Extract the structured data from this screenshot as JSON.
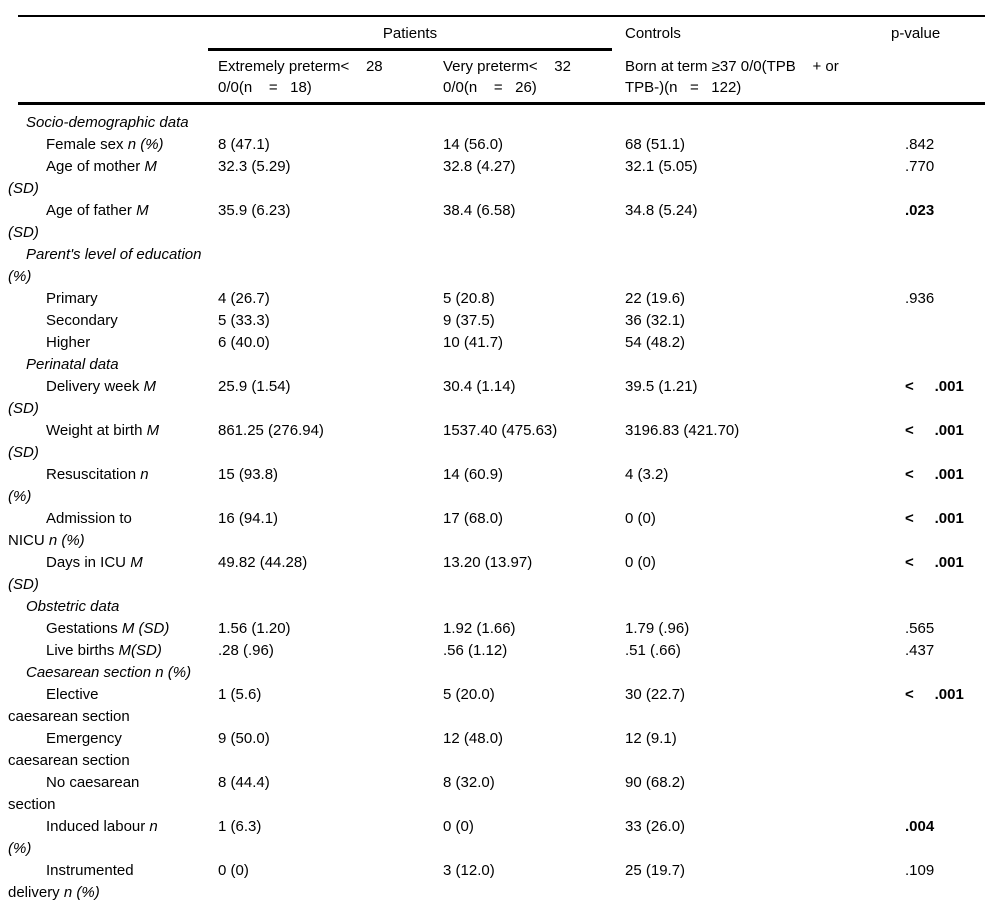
{
  "table": {
    "header": {
      "patients": "Patients",
      "controls": "Controls",
      "pvalue": "p-value",
      "col1": "Extremely preterm<    28\n0/0(n    =   18)",
      "col2": "Very preterm<    32\n0/0(n    =   26)",
      "col3": "Born at term ≥37 0/0(TPB    + or\nTPB-)(n   =   122)"
    },
    "rows": [
      {
        "type": "section",
        "label": [
          {
            "t": "Socio-demographic data",
            "i": true
          }
        ]
      },
      {
        "type": "item",
        "label": [
          {
            "t": "Female sex ",
            "i": false
          },
          {
            "t": "n (%)",
            "i": true
          }
        ],
        "c1": "8 (47.1)",
        "c2": "14 (56.0)",
        "c3": "68 (51.1)",
        "p": ".842",
        "p_bold": false
      },
      {
        "type": "item",
        "label": [
          {
            "t": "Age of mother ",
            "i": false
          },
          {
            "t": "M",
            "i": true
          },
          {
            "t": "\n",
            "i": false
          },
          {
            "t": "(SD)",
            "i": true
          }
        ],
        "c1": "32.3 (5.29)",
        "c2": "32.8 (4.27)",
        "c3": "32.1 (5.05)",
        "p": ".770",
        "p_bold": false
      },
      {
        "type": "item",
        "label": [
          {
            "t": "Age of father ",
            "i": false
          },
          {
            "t": "M",
            "i": true
          },
          {
            "t": "\n",
            "i": false
          },
          {
            "t": "(SD)",
            "i": true
          }
        ],
        "c1": "35.9 (6.23)",
        "c2": "38.4 (6.58)",
        "c3": "34.8 (5.24)",
        "p": ".023",
        "p_bold": true
      },
      {
        "type": "section",
        "label": [
          {
            "t": "Parent's level of education (%)",
            "i": true
          }
        ]
      },
      {
        "type": "item",
        "label": [
          {
            "t": "Primary",
            "i": false
          }
        ],
        "c1": "4 (26.7)",
        "c2": "5 (20.8)",
        "c3": "22 (19.6)",
        "p": ".936",
        "p_bold": false
      },
      {
        "type": "item",
        "label": [
          {
            "t": "Secondary",
            "i": false
          }
        ],
        "c1": "5 (33.3)",
        "c2": "9 (37.5)",
        "c3": "36 (32.1)",
        "p": "",
        "p_bold": false
      },
      {
        "type": "item",
        "label": [
          {
            "t": "Higher",
            "i": false
          }
        ],
        "c1": "6 (40.0)",
        "c2": "10 (41.7)",
        "c3": "54 (48.2)",
        "p": "",
        "p_bold": false
      },
      {
        "type": "section",
        "label": [
          {
            "t": "Perinatal data",
            "i": true
          }
        ]
      },
      {
        "type": "item",
        "label": [
          {
            "t": "Delivery week ",
            "i": false
          },
          {
            "t": "M",
            "i": true
          },
          {
            "t": "\n",
            "i": false
          },
          {
            "t": "(SD)",
            "i": true
          }
        ],
        "c1": "25.9 (1.54)",
        "c2": "30.4 (1.14)",
        "c3": "39.5 (1.21)",
        "p": "<     .001",
        "p_bold": true
      },
      {
        "type": "item",
        "label": [
          {
            "t": "Weight at birth ",
            "i": false
          },
          {
            "t": "M",
            "i": true
          },
          {
            "t": "\n",
            "i": false
          },
          {
            "t": "(SD)",
            "i": true
          }
        ],
        "c1": "861.25 (276.94)",
        "c2": "1537.40 (475.63)",
        "c3": "3196.83 (421.70)",
        "p": "<     .001",
        "p_bold": true
      },
      {
        "type": "item",
        "label": [
          {
            "t": "Resuscitation ",
            "i": false
          },
          {
            "t": "n",
            "i": true
          },
          {
            "t": "\n",
            "i": false
          },
          {
            "t": "(%)",
            "i": true
          }
        ],
        "c1": "15 (93.8)",
        "c2": "14 (60.9)",
        "c3": "4 (3.2)",
        "p": "<     .001",
        "p_bold": true
      },
      {
        "type": "item",
        "label": [
          {
            "t": "Admission to",
            "i": false
          },
          {
            "t": "\n",
            "i": false
          },
          {
            "t": "NICU ",
            "i": false
          },
          {
            "t": "n (%)",
            "i": true
          }
        ],
        "c1": "16 (94.1)",
        "c2": "17 (68.0)",
        "c3": "0 (0)",
        "p": "<     .001",
        "p_bold": true
      },
      {
        "type": "item",
        "label": [
          {
            "t": "Days in ICU ",
            "i": false
          },
          {
            "t": "M",
            "i": true
          },
          {
            "t": "\n",
            "i": false
          },
          {
            "t": "(SD)",
            "i": true
          }
        ],
        "c1": "49.82 (44.28)",
        "c2": "13.20 (13.97)",
        "c3": "0 (0)",
        "p": "<     .001",
        "p_bold": true
      },
      {
        "type": "section",
        "label": [
          {
            "t": "Obstetric data",
            "i": true
          }
        ]
      },
      {
        "type": "item",
        "label": [
          {
            "t": "Gestations ",
            "i": false
          },
          {
            "t": "M (SD)",
            "i": true
          }
        ],
        "c1": "1.56 (1.20)",
        "c2": "1.92 (1.66)",
        "c3": "1.79 (.96)",
        "p": ".565",
        "p_bold": false
      },
      {
        "type": "item",
        "label": [
          {
            "t": "Live births ",
            "i": false
          },
          {
            "t": "M(SD)",
            "i": true
          }
        ],
        "c1": ".28 (.96)",
        "c2": ".56 (1.12)",
        "c3": ".51 (.66)",
        "p": ".437",
        "p_bold": false
      },
      {
        "type": "section",
        "label": [
          {
            "t": "Caesarean section n (%)",
            "i": true
          }
        ]
      },
      {
        "type": "item",
        "label": [
          {
            "t": "Elective",
            "i": false
          },
          {
            "t": "\n",
            "i": false
          },
          {
            "t": "caesarean section",
            "i": false
          }
        ],
        "c1": "1 (5.6)",
        "c2": "5 (20.0)",
        "c3": "30 (22.7)",
        "p": "<     .001",
        "p_bold": true
      },
      {
        "type": "item",
        "label": [
          {
            "t": "Emergency",
            "i": false
          },
          {
            "t": "\n",
            "i": false
          },
          {
            "t": "caesarean section",
            "i": false
          }
        ],
        "c1": "9 (50.0)",
        "c2": "12 (48.0)",
        "c3": "12 (9.1)",
        "p": "",
        "p_bold": false
      },
      {
        "type": "item",
        "label": [
          {
            "t": "No caesarean",
            "i": false
          },
          {
            "t": "\n",
            "i": false
          },
          {
            "t": "section",
            "i": false
          }
        ],
        "c1": "8 (44.4)",
        "c2": "8 (32.0)",
        "c3": "90 (68.2)",
        "p": "",
        "p_bold": false
      },
      {
        "type": "item",
        "label": [
          {
            "t": "Induced labour ",
            "i": false
          },
          {
            "t": "n",
            "i": true
          },
          {
            "t": "\n",
            "i": false
          },
          {
            "t": "(%)",
            "i": true
          }
        ],
        "c1": "1 (6.3)",
        "c2": "0 (0)",
        "c3": "33 (26.0)",
        "p": ".004",
        "p_bold": true
      },
      {
        "type": "item",
        "label": [
          {
            "t": "Instrumented",
            "i": false
          },
          {
            "t": "\n",
            "i": false
          },
          {
            "t": "delivery ",
            "i": false
          },
          {
            "t": "n (%)",
            "i": true
          }
        ],
        "c1": "0 (0)",
        "c2": "3 (12.0)",
        "c3": "25 (19.7)",
        "p": ".109",
        "p_bold": false
      }
    ]
  }
}
